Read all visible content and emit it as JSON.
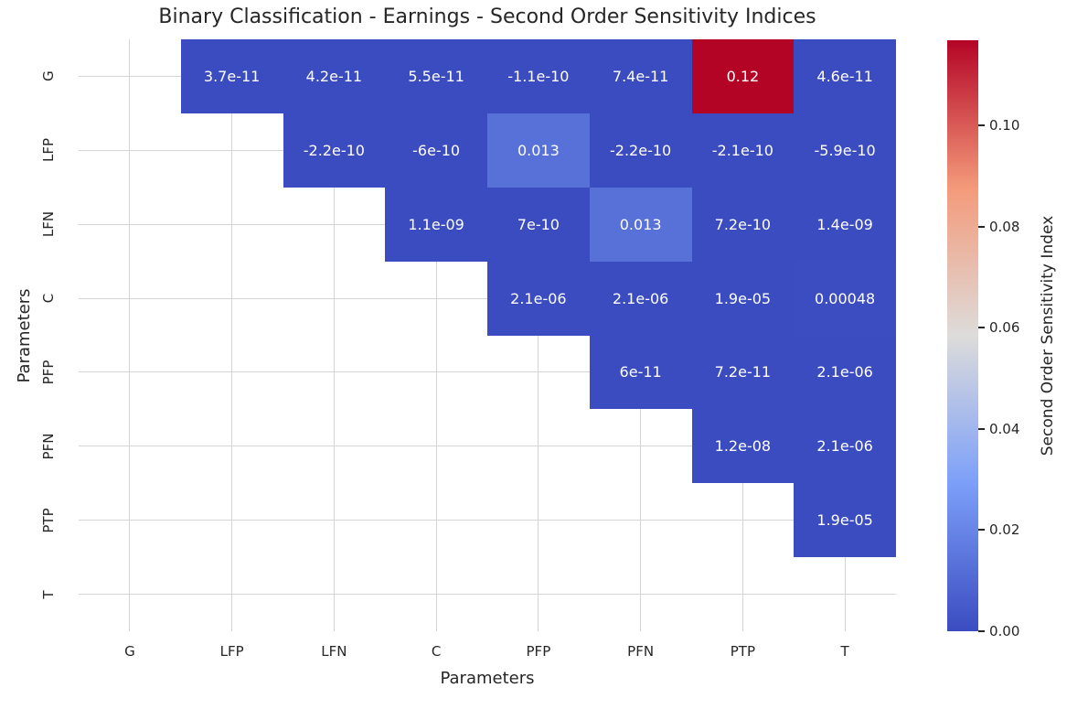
{
  "chart_data": {
    "type": "heatmap",
    "title": "Binary Classification - Earnings - Second Order Sensitivity Indices",
    "xlabel": "Parameters",
    "ylabel": "Parameters",
    "categories": [
      "G",
      "LFP",
      "LFN",
      "C",
      "PFP",
      "PFN",
      "PTP",
      "T"
    ],
    "mask": "lower-triangle-and-diagonal-hidden",
    "colormap": "coolwarm",
    "colormap_anchors": [
      "#3b4cc0",
      "#7c9ff9",
      "#dddcda",
      "#f49a7a",
      "#b40426"
    ],
    "grid": true,
    "grid_color": "#d4d4d4",
    "annotation_color": "#ffffff",
    "text_color": "#262626",
    "vmin": 0.0,
    "vmax": 0.1168,
    "colorbar": {
      "label": "Second Order Sensitivity Index",
      "tick_values": [
        0.0,
        0.02,
        0.04,
        0.06,
        0.08,
        0.1
      ],
      "tick_labels": [
        "0.00",
        "0.02",
        "0.04",
        "0.06",
        "0.08",
        "0.10"
      ]
    },
    "cells": [
      {
        "row": "G",
        "col": "LFP",
        "label": "3.7e-11",
        "value": 3.7e-11
      },
      {
        "row": "G",
        "col": "LFN",
        "label": "4.2e-11",
        "value": 4.2e-11
      },
      {
        "row": "G",
        "col": "C",
        "label": "5.5e-11",
        "value": 5.5e-11
      },
      {
        "row": "G",
        "col": "PFP",
        "label": "-1.1e-10",
        "value": -1.1e-10
      },
      {
        "row": "G",
        "col": "PFN",
        "label": "7.4e-11",
        "value": 7.4e-11
      },
      {
        "row": "G",
        "col": "PTP",
        "label": "0.12",
        "value": 0.12
      },
      {
        "row": "G",
        "col": "T",
        "label": "4.6e-11",
        "value": 4.6e-11
      },
      {
        "row": "LFP",
        "col": "LFN",
        "label": "-2.2e-10",
        "value": -2.2e-10
      },
      {
        "row": "LFP",
        "col": "C",
        "label": "-6e-10",
        "value": -6e-10
      },
      {
        "row": "LFP",
        "col": "PFP",
        "label": "0.013",
        "value": 0.013
      },
      {
        "row": "LFP",
        "col": "PFN",
        "label": "-2.2e-10",
        "value": -2.2e-10
      },
      {
        "row": "LFP",
        "col": "PTP",
        "label": "-2.1e-10",
        "value": -2.1e-10
      },
      {
        "row": "LFP",
        "col": "T",
        "label": "-5.9e-10",
        "value": -5.9e-10
      },
      {
        "row": "LFN",
        "col": "C",
        "label": "1.1e-09",
        "value": 1.1e-09
      },
      {
        "row": "LFN",
        "col": "PFP",
        "label": "7e-10",
        "value": 7e-10
      },
      {
        "row": "LFN",
        "col": "PFN",
        "label": "0.013",
        "value": 0.013
      },
      {
        "row": "LFN",
        "col": "PTP",
        "label": "7.2e-10",
        "value": 7.2e-10
      },
      {
        "row": "LFN",
        "col": "T",
        "label": "1.4e-09",
        "value": 1.4e-09
      },
      {
        "row": "C",
        "col": "PFP",
        "label": "2.1e-06",
        "value": 2.1e-06
      },
      {
        "row": "C",
        "col": "PFN",
        "label": "2.1e-06",
        "value": 2.1e-06
      },
      {
        "row": "C",
        "col": "PTP",
        "label": "1.9e-05",
        "value": 1.9e-05
      },
      {
        "row": "C",
        "col": "T",
        "label": "0.00048",
        "value": 0.00048
      },
      {
        "row": "PFP",
        "col": "PFN",
        "label": "6e-11",
        "value": 6e-11
      },
      {
        "row": "PFP",
        "col": "PTP",
        "label": "7.2e-11",
        "value": 7.2e-11
      },
      {
        "row": "PFP",
        "col": "T",
        "label": "2.1e-06",
        "value": 2.1e-06
      },
      {
        "row": "PFN",
        "col": "PTP",
        "label": "1.2e-08",
        "value": 1.2e-08
      },
      {
        "row": "PFN",
        "col": "T",
        "label": "2.1e-06",
        "value": 2.1e-06
      },
      {
        "row": "PTP",
        "col": "T",
        "label": "1.9e-05",
        "value": 1.9e-05
      }
    ]
  }
}
